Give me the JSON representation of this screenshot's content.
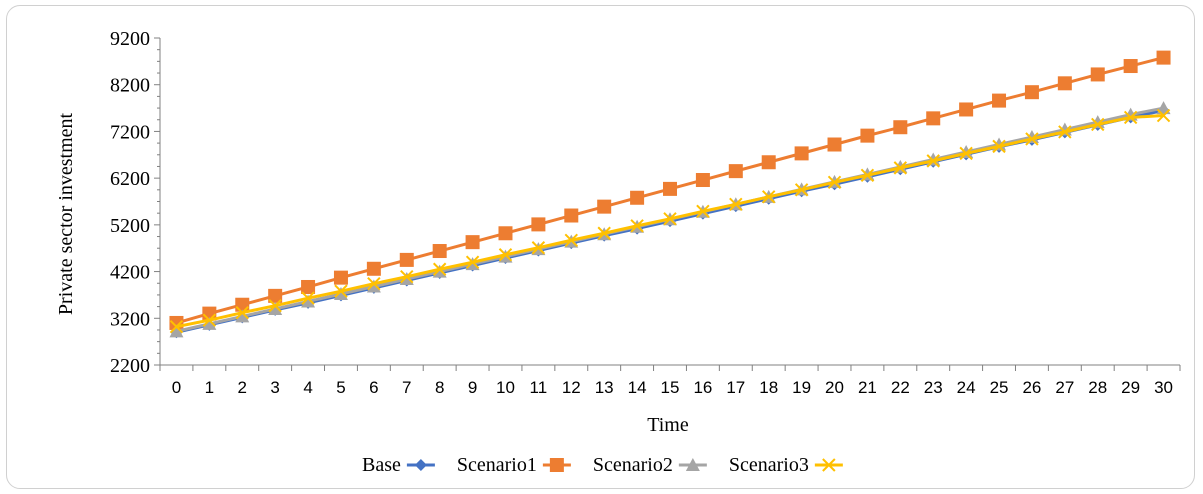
{
  "chart_data": {
    "type": "line",
    "title": "",
    "xlabel": "Time",
    "ylabel": "Private sector investment",
    "ylim": [
      2200,
      9200
    ],
    "yticks": [
      2200,
      3200,
      4200,
      5200,
      6200,
      7200,
      8200,
      9200
    ],
    "x": [
      0,
      1,
      2,
      3,
      4,
      5,
      6,
      7,
      8,
      9,
      10,
      11,
      12,
      13,
      14,
      15,
      16,
      17,
      18,
      19,
      20,
      21,
      22,
      23,
      24,
      25,
      26,
      27,
      28,
      29,
      30
    ],
    "legend_position": "bottom",
    "series": [
      {
        "name": "Base",
        "color": "#4472c4",
        "marker": "diamond",
        "values": [
          2900,
          3060,
          3220,
          3380,
          3530,
          3690,
          3850,
          4010,
          4170,
          4330,
          4490,
          4650,
          4810,
          4970,
          5120,
          5280,
          5440,
          5600,
          5760,
          5920,
          6070,
          6230,
          6390,
          6550,
          6710,
          6870,
          7020,
          7180,
          7340,
          7500,
          7650
        ]
      },
      {
        "name": "Scenario1",
        "color": "#ed7d31",
        "marker": "square",
        "values": [
          3100,
          3300,
          3490,
          3680,
          3870,
          4070,
          4260,
          4450,
          4640,
          4830,
          5020,
          5210,
          5400,
          5590,
          5780,
          5970,
          6160,
          6350,
          6540,
          6730,
          6920,
          7110,
          7290,
          7480,
          7670,
          7860,
          8040,
          8230,
          8420,
          8600,
          8780
        ]
      },
      {
        "name": "Scenario2",
        "color": "#a5a5a5",
        "marker": "triangle",
        "values": [
          2920,
          3080,
          3240,
          3400,
          3560,
          3720,
          3880,
          4040,
          4200,
          4360,
          4520,
          4680,
          4840,
          5000,
          5160,
          5320,
          5480,
          5640,
          5800,
          5960,
          6120,
          6280,
          6440,
          6600,
          6760,
          6920,
          7080,
          7240,
          7400,
          7560,
          7700
        ]
      },
      {
        "name": "Scenario3",
        "color": "#ffc000",
        "marker": "x",
        "values": [
          3020,
          3160,
          3320,
          3470,
          3630,
          3780,
          3940,
          4090,
          4250,
          4400,
          4560,
          4710,
          4870,
          5020,
          5180,
          5330,
          5490,
          5640,
          5800,
          5950,
          6110,
          6260,
          6420,
          6570,
          6730,
          6880,
          7040,
          7190,
          7350,
          7500,
          7540
        ]
      }
    ]
  }
}
